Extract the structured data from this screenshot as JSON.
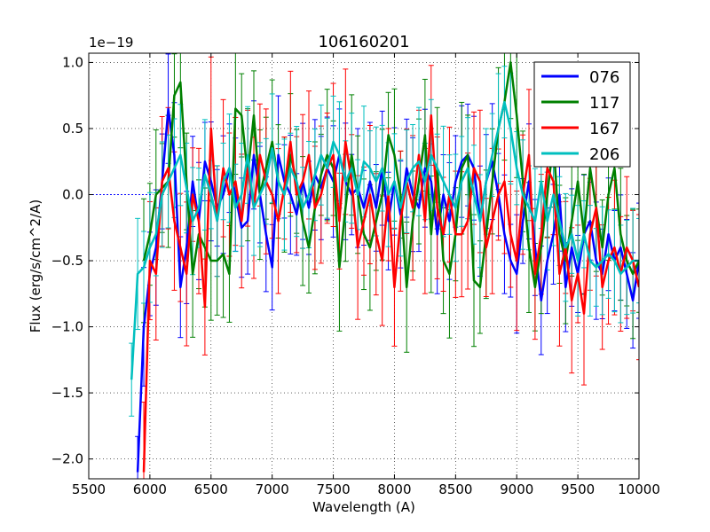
{
  "chart_data": {
    "type": "line",
    "title": "106160201",
    "xlabel": "Wavelength (A)",
    "ylabel": "Flux (erg/s/cm^2/A)",
    "y_offset_label": "1e−19",
    "xlim": [
      5500,
      10000
    ],
    "ylim": [
      -2.15,
      1.07
    ],
    "x_ticks": [
      5500,
      6000,
      6500,
      7000,
      7500,
      8000,
      8500,
      9000,
      9500,
      10000
    ],
    "x_tick_labels": [
      "5500",
      "6000",
      "6500",
      "7000",
      "7500",
      "8000",
      "8500",
      "9000",
      "9500",
      "10000"
    ],
    "y_ticks": [
      -2.0,
      -1.5,
      -1.0,
      -0.5,
      0.0,
      0.5,
      1.0
    ],
    "y_tick_labels": [
      "−2.0",
      "−1.5",
      "−1.0",
      "−0.5",
      "0.0",
      "0.5",
      "1.0"
    ],
    "grid": true,
    "legend_position": "top-right",
    "series": [
      {
        "name": "076",
        "color": "#0000ff",
        "x": [
          5900,
          5950,
          6000,
          6050,
          6100,
          6150,
          6200,
          6250,
          6300,
          6350,
          6400,
          6450,
          6500,
          6550,
          6600,
          6650,
          6700,
          6750,
          6800,
          6850,
          6900,
          6950,
          7000,
          7050,
          7100,
          7150,
          7200,
          7250,
          7300,
          7350,
          7400,
          7450,
          7500,
          7550,
          7600,
          7650,
          7700,
          7750,
          7800,
          7850,
          7900,
          7950,
          8000,
          8050,
          8100,
          8150,
          8200,
          8250,
          8300,
          8350,
          8400,
          8450,
          8500,
          8550,
          8600,
          8650,
          8700,
          8750,
          8800,
          8850,
          8900,
          8950,
          9000,
          9050,
          9100,
          9150,
          9200,
          9250,
          9300,
          9350,
          9400,
          9450,
          9500,
          9550,
          9600,
          9650,
          9700,
          9750,
          9800,
          9850,
          9900,
          9950,
          10000
        ],
        "y": [
          -2.1,
          -1.0,
          -0.6,
          -0.4,
          0.1,
          0.65,
          0.3,
          -0.7,
          -0.4,
          0.1,
          -0.2,
          0.25,
          0.1,
          -0.1,
          0.0,
          0.2,
          0.0,
          -0.25,
          -0.2,
          0.3,
          0.0,
          -0.3,
          -0.55,
          0.3,
          0.1,
          0.0,
          -0.15,
          0.1,
          -0.1,
          0.15,
          0.05,
          0.2,
          0.1,
          0.3,
          0.1,
          0.0,
          0.05,
          -0.1,
          0.1,
          -0.1,
          0.2,
          -0.2,
          0.1,
          -0.15,
          0.2,
          0.0,
          -0.1,
          0.2,
          0.1,
          -0.3,
          0.0,
          -0.2,
          0.1,
          0.25,
          0.3,
          0.2,
          -0.2,
          0.1,
          0.25,
          0.0,
          -0.3,
          -0.5,
          -0.6,
          -0.2,
          0.1,
          -0.4,
          -0.8,
          -0.5,
          -0.3,
          0.0,
          -0.7,
          -0.4,
          -0.6,
          -0.3,
          -0.2,
          -0.5,
          -0.6,
          -0.3,
          -0.5,
          -0.4,
          -0.6,
          -0.8,
          -0.5
        ]
      },
      {
        "name": "117",
        "color": "#008000",
        "x": [
          5950,
          6000,
          6050,
          6100,
          6150,
          6200,
          6250,
          6300,
          6350,
          6400,
          6450,
          6500,
          6550,
          6600,
          6650,
          6700,
          6750,
          6800,
          6850,
          6900,
          6950,
          7000,
          7050,
          7100,
          7150,
          7200,
          7250,
          7300,
          7350,
          7400,
          7450,
          7500,
          7550,
          7600,
          7650,
          7700,
          7750,
          7800,
          7850,
          7900,
          7950,
          8000,
          8050,
          8100,
          8150,
          8200,
          8250,
          8300,
          8350,
          8400,
          8450,
          8500,
          8550,
          8600,
          8650,
          8700,
          8750,
          8800,
          8850,
          8900,
          8950,
          9000,
          9050,
          9100,
          9150,
          9200,
          9250,
          9300,
          9350,
          9400,
          9450,
          9500,
          9550,
          9600,
          9650,
          9700,
          9750,
          9800,
          9850,
          9900,
          9950,
          10000
        ],
        "y": [
          -0.5,
          -0.3,
          0.0,
          0.05,
          0.1,
          0.75,
          0.85,
          0.1,
          -0.6,
          -0.3,
          -0.4,
          -0.5,
          -0.5,
          -0.45,
          -0.6,
          0.65,
          0.6,
          0.15,
          0.6,
          0.0,
          0.2,
          0.4,
          0.1,
          0.0,
          0.3,
          0.1,
          -0.2,
          -0.4,
          -0.1,
          0.15,
          0.3,
          0.2,
          -0.55,
          -0.1,
          0.3,
          0.0,
          -0.3,
          -0.4,
          -0.2,
          0.0,
          0.45,
          0.3,
          0.0,
          -0.7,
          -0.2,
          0.1,
          0.45,
          -0.3,
          0.2,
          -0.5,
          -0.6,
          -0.3,
          0.2,
          0.3,
          -0.65,
          -0.7,
          -0.3,
          0.1,
          0.5,
          0.7,
          1.0,
          0.6,
          0.1,
          -0.4,
          -0.7,
          -0.4,
          0.0,
          0.4,
          -0.3,
          -0.5,
          -0.2,
          0.1,
          -0.3,
          0.2,
          -0.1,
          -0.4,
          0.0,
          0.2,
          -0.3,
          -0.5,
          -0.6,
          -0.5
        ]
      },
      {
        "name": "167",
        "color": "#ff0000",
        "x": [
          5950,
          6000,
          6050,
          6100,
          6150,
          6200,
          6250,
          6300,
          6350,
          6400,
          6450,
          6500,
          6550,
          6600,
          6650,
          6700,
          6750,
          6800,
          6850,
          6900,
          6950,
          7000,
          7050,
          7100,
          7150,
          7200,
          7250,
          7300,
          7350,
          7400,
          7450,
          7500,
          7550,
          7600,
          7650,
          7700,
          7750,
          7800,
          7850,
          7900,
          7950,
          8000,
          8050,
          8100,
          8150,
          8200,
          8250,
          8300,
          8350,
          8400,
          8450,
          8500,
          8550,
          8600,
          8650,
          8700,
          8750,
          8800,
          8850,
          8900,
          8950,
          9000,
          9050,
          9100,
          9150,
          9200,
          9250,
          9300,
          9350,
          9400,
          9450,
          9500,
          9550,
          9600,
          9650,
          9700,
          9750,
          9800,
          9850,
          9900,
          9950,
          10000
        ],
        "y": [
          -2.1,
          -0.5,
          -0.6,
          0.1,
          0.2,
          -0.2,
          -0.4,
          -0.6,
          0.0,
          -0.2,
          -0.85,
          0.5,
          -0.2,
          0.2,
          0.0,
          0.1,
          -0.2,
          0.2,
          -0.1,
          0.3,
          0.1,
          0.0,
          -0.2,
          0.05,
          0.4,
          0.0,
          0.1,
          0.3,
          -0.1,
          0.0,
          0.2,
          0.3,
          -0.2,
          0.4,
          0.1,
          -0.4,
          -0.2,
          0.0,
          -0.3,
          -0.5,
          0.0,
          -0.7,
          -0.2,
          0.1,
          -0.1,
          0.3,
          -0.2,
          0.6,
          -0.1,
          -0.3,
          0.0,
          -0.3,
          -0.3,
          -0.2,
          0.2,
          0.1,
          -0.4,
          -0.2,
          0.0,
          0.1,
          -0.3,
          -0.5,
          0.0,
          0.3,
          -0.6,
          -0.3,
          0.2,
          0.1,
          -0.6,
          -0.4,
          -0.8,
          -0.6,
          -0.9,
          -0.3,
          -0.1,
          -0.7,
          -0.5,
          -0.4,
          -0.6,
          -0.4,
          -0.5,
          -0.7
        ]
      },
      {
        "name": "206",
        "color": "#00bfbf",
        "x": [
          5850,
          5900,
          5950,
          6000,
          6050,
          6100,
          6150,
          6200,
          6250,
          6300,
          6350,
          6400,
          6450,
          6500,
          6550,
          6600,
          6650,
          6700,
          6750,
          6800,
          6850,
          6900,
          6950,
          7000,
          7050,
          7100,
          7150,
          7200,
          7250,
          7300,
          7350,
          7400,
          7450,
          7500,
          7550,
          7600,
          7650,
          7700,
          7750,
          7800,
          7850,
          7900,
          7950,
          8000,
          8050,
          8100,
          8150,
          8200,
          8250,
          8300,
          8350,
          8400,
          8450,
          8500,
          8550,
          8600,
          8650,
          8700,
          8750,
          8800,
          8850,
          8900,
          8950,
          9000,
          9050,
          9100,
          9150,
          9200,
          9250,
          9300,
          9350,
          9400,
          9450,
          9500,
          9550,
          9600,
          9650,
          9700,
          9750,
          9800,
          9850,
          9900,
          9950,
          10000
        ],
        "y": [
          -1.4,
          -0.6,
          -0.55,
          -0.4,
          -0.3,
          0.0,
          0.1,
          0.2,
          0.3,
          0.05,
          -0.2,
          -0.1,
          0.15,
          0.0,
          -0.2,
          0.1,
          0.2,
          -0.1,
          0.0,
          0.3,
          -0.1,
          0.0,
          0.1,
          0.35,
          0.1,
          0.0,
          0.2,
          0.1,
          -0.1,
          0.0,
          0.15,
          0.3,
          0.2,
          0.4,
          0.3,
          0.1,
          0.2,
          0.0,
          0.25,
          0.2,
          0.1,
          0.2,
          0.0,
          0.1,
          -0.1,
          0.1,
          0.2,
          0.25,
          0.1,
          0.3,
          0.2,
          0.1,
          0.0,
          -0.1,
          0.1,
          0.2,
          0.0,
          -0.2,
          0.1,
          0.3,
          0.5,
          0.7,
          0.5,
          0.2,
          0.0,
          -0.1,
          -0.2,
          0.1,
          -0.2,
          0.0,
          -0.2,
          -0.4,
          -0.3,
          -0.5,
          -0.3,
          -0.5,
          -0.55,
          -0.5,
          -0.45,
          -0.5,
          -0.6,
          -0.55,
          -0.5,
          -0.5
        ]
      }
    ]
  }
}
